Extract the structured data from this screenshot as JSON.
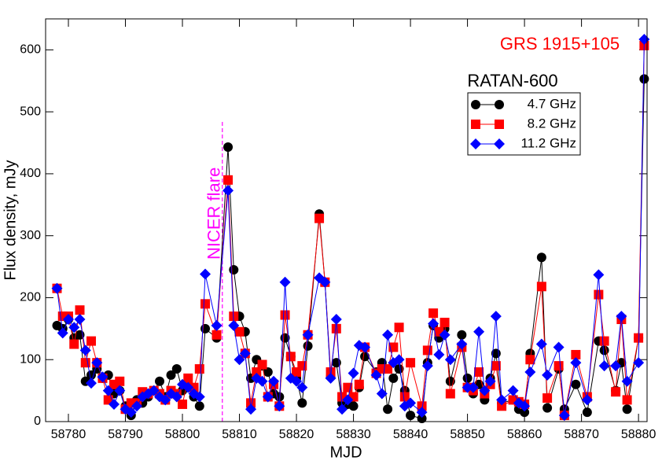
{
  "chart_data": {
    "type": "line",
    "title": "GRS 1915+105",
    "title_color": "#ff0000",
    "legend_title": "RATAN-600",
    "legend": "upper right",
    "xlabel": "MJD",
    "ylabel": "Flux density, mJy",
    "xlim": [
      58776,
      58881.5
    ],
    "ylim": [
      0,
      650
    ],
    "xticks": [
      58780,
      58790,
      58800,
      58810,
      58820,
      58830,
      58840,
      58850,
      58860,
      58870,
      58880
    ],
    "yticks": [
      0,
      100,
      200,
      300,
      400,
      500,
      600
    ],
    "annotations": [
      {
        "text": "NICER flare",
        "x": 58807,
        "color": "#ff00ff"
      }
    ],
    "x": [
      58778,
      58779,
      58780,
      58781,
      58782,
      58783,
      58784,
      58785,
      58786,
      58787,
      58788,
      58789,
      58790,
      58791,
      58792,
      58793,
      58794,
      58795,
      58796,
      58797,
      58798,
      58799,
      58800,
      58801,
      58802,
      58803,
      58804,
      58806,
      58808,
      58809,
      58810,
      58811,
      58812,
      58813,
      58814,
      58815,
      58816,
      58817,
      58818,
      58819,
      58820,
      58821,
      58822,
      58824,
      58825,
      58826,
      58827,
      58828,
      58829,
      58830,
      58831,
      58832,
      58834,
      58835,
      58836,
      58837,
      58838,
      58839,
      58840,
      58842,
      58843,
      58844,
      58845,
      58846,
      58847,
      58849,
      58850,
      58851,
      58852,
      58853,
      58854,
      58855,
      58856,
      58858,
      58859,
      58860,
      58861,
      58863,
      58864,
      58866,
      58867,
      58869,
      58871,
      58873,
      58874,
      58876,
      58877,
      58878,
      58880,
      58881
    ],
    "series": [
      {
        "name": "4.7 GHz",
        "color": "#000000",
        "marker": "circle",
        "values": [
          155,
          150,
          165,
          135,
          140,
          65,
          75,
          85,
          70,
          75,
          45,
          50,
          25,
          10,
          35,
          30,
          40,
          50,
          65,
          40,
          75,
          85,
          50,
          60,
          40,
          25,
          150,
          135,
          443,
          245,
          170,
          145,
          70,
          100,
          90,
          80,
          45,
          40,
          135,
          105,
          70,
          30,
          122,
          335,
          225,
          73,
          95,
          30,
          28,
          25,
          55,
          105,
          80,
          95,
          20,
          70,
          85,
          50,
          10,
          5,
          95,
          155,
          135,
          150,
          65,
          140,
          70,
          45,
          60,
          35,
          70,
          110,
          30,
          35,
          20,
          15,
          110,
          265,
          22,
          85,
          20,
          60,
          15,
          130,
          115,
          50,
          95,
          20,
          135,
          553
        ]
      },
      {
        "name": "8.2 GHz",
        "color": "#ff0000",
        "marker": "square",
        "values": [
          215,
          170,
          170,
          125,
          180,
          95,
          130,
          95,
          70,
          35,
          60,
          65,
          20,
          30,
          30,
          48,
          45,
          50,
          45,
          35,
          50,
          45,
          28,
          70,
          55,
          85,
          190,
          140,
          390,
          170,
          145,
          110,
          30,
          80,
          92,
          40,
          60,
          25,
          172,
          105,
          80,
          90,
          140,
          328,
          225,
          80,
          150,
          40,
          55,
          40,
          60,
          120,
          78,
          85,
          85,
          120,
          152,
          40,
          95,
          25,
          115,
          175,
          145,
          160,
          45,
          120,
          55,
          50,
          80,
          45,
          60,
          90,
          25,
          35,
          32,
          28,
          100,
          218,
          38,
          90,
          10,
          108,
          40,
          205,
          130,
          48,
          165,
          35,
          135,
          607
        ]
      },
      {
        "name": "11.2 GHz",
        "color": "#0000ff",
        "marker": "diamond",
        "values": [
          215,
          143,
          165,
          152,
          165,
          115,
          62,
          95,
          72,
          50,
          28,
          50,
          20,
          15,
          25,
          40,
          45,
          50,
          40,
          35,
          45,
          40,
          60,
          55,
          45,
          40,
          238,
          155,
          373,
          155,
          100,
          110,
          20,
          70,
          65,
          40,
          65,
          25,
          225,
          70,
          65,
          55,
          140,
          232,
          225,
          70,
          165,
          20,
          35,
          78,
          123,
          120,
          75,
          45,
          140,
          95,
          100,
          25,
          30,
          15,
          90,
          158,
          108,
          140,
          100,
          125,
          55,
          55,
          145,
          50,
          65,
          170,
          35,
          50,
          30,
          25,
          80,
          125,
          75,
          120,
          10,
          95,
          35,
          237,
          90,
          90,
          170,
          65,
          95,
          617
        ]
      }
    ]
  }
}
